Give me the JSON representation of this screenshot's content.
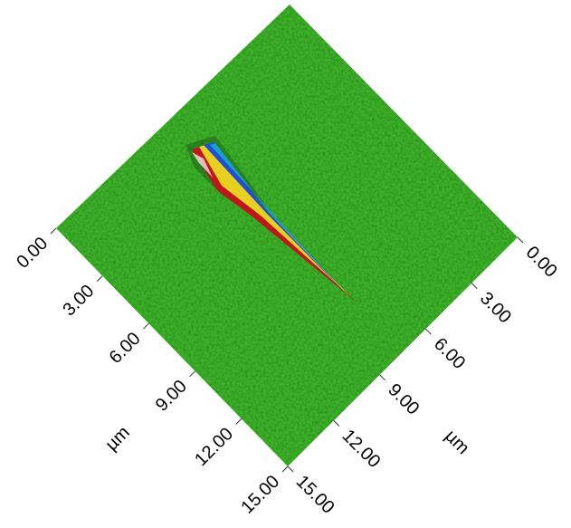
{
  "chart_data": {
    "type": "surface",
    "xlabel": "µm",
    "ylabel": "µm",
    "xlim": [
      0,
      15
    ],
    "ylim": [
      0,
      15
    ],
    "xticks": [
      {
        "value": 0,
        "label": "0.00"
      },
      {
        "value": 3,
        "label": "3.00"
      },
      {
        "value": 6,
        "label": "6.00"
      },
      {
        "value": 9,
        "label": "9.00"
      },
      {
        "value": 12,
        "label": "12.00"
      },
      {
        "value": 15,
        "label": "15.00"
      }
    ],
    "yticks": [
      {
        "value": 0,
        "label": "0.00"
      },
      {
        "value": 3,
        "label": "3.00"
      },
      {
        "value": 6,
        "label": "6.00"
      },
      {
        "value": 9,
        "label": "9.00"
      },
      {
        "value": 12,
        "label": "12.00"
      },
      {
        "value": 15,
        "label": "15.00"
      }
    ],
    "color": "#3cb02a"
  }
}
